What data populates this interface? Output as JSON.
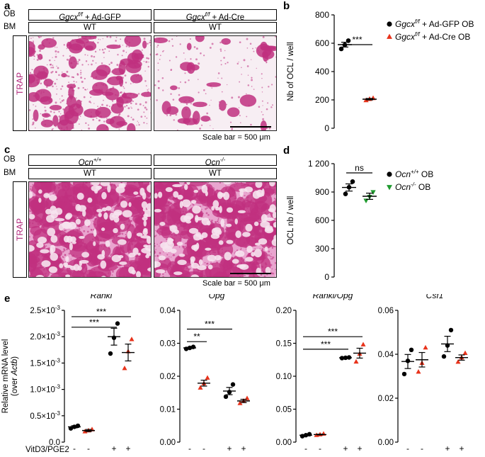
{
  "panels": {
    "a": {
      "label": "a",
      "row_labels": [
        "OB",
        "BM"
      ],
      "ob_left": {
        "gene": "Ggcx",
        "sup": "f/f",
        "rest": " + Ad-GFP"
      },
      "ob_right": {
        "gene": "Ggcx",
        "sup": "f/f",
        "rest": " + Ad-Cre"
      },
      "bm_left": "WT",
      "bm_right": "WT",
      "side_label": "TRAP",
      "scale_text": "Scale bar = 500 μm"
    },
    "c": {
      "label": "c",
      "row_labels": [
        "OB",
        "BM"
      ],
      "ob_left": {
        "gene": "Ocn",
        "sup": "+/+"
      },
      "ob_right": {
        "gene": "Ocn",
        "sup": "-/-"
      },
      "bm_left": "WT",
      "bm_right": "WT",
      "side_label": "TRAP",
      "scale_text": "Scale bar = 500 μm"
    },
    "b": {
      "label": "b"
    },
    "d": {
      "label": "d"
    },
    "e": {
      "label": "e"
    }
  },
  "colors": {
    "trap_stain": "#c0307f",
    "trap_bg_light": "#f7eef3",
    "trap_bg_dense": "#e9a5cf",
    "control_marker": "#000000",
    "cre_marker": "#e8331b",
    "ko_marker": "#1f9a2e"
  },
  "chart_data": [
    {
      "id": "b",
      "type": "scatter",
      "ylabel": "Nb of OCL / well",
      "ylim": [
        0,
        800
      ],
      "yticks": [
        0,
        200,
        400,
        600,
        800
      ],
      "groups": [
        {
          "name": "Ggcx f/f + Ad-GFP OB",
          "marker": "circle",
          "color": "#000000",
          "points": [
            560,
            588,
            618
          ],
          "mean": 590,
          "sem": 17
        },
        {
          "name": "Ggcx f/f + Ad-Cre OB",
          "marker": "triangle-up",
          "color": "#e8331b",
          "points": [
            197,
            206,
            212
          ],
          "mean": 205,
          "sem": 5
        }
      ],
      "significance": [
        {
          "between": [
            0,
            1
          ],
          "text": "***"
        }
      ],
      "legend": [
        {
          "marker": "circle",
          "color": "#000000",
          "gene": "Ggcx",
          "sup": "f/f",
          "rest": " + Ad-GFP OB"
        },
        {
          "marker": "triangle-up",
          "color": "#e8331b",
          "gene": "Ggcx",
          "sup": "f/f",
          "rest": " + Ad-Cre OB"
        }
      ]
    },
    {
      "id": "d",
      "type": "scatter",
      "ylabel": "OCL nb / well",
      "ylim": [
        0,
        1200
      ],
      "ytick_labels": [
        "0",
        "300",
        "600",
        "900",
        "1 200"
      ],
      "yticks": [
        0,
        300,
        600,
        900,
        1200
      ],
      "groups": [
        {
          "name": "Ocn+/+ OB",
          "marker": "circle",
          "color": "#000000",
          "points": [
            880,
            950,
            1010
          ],
          "mean": 948,
          "sem": 38
        },
        {
          "name": "Ocn-/- OB",
          "marker": "triangle-down",
          "color": "#1f9a2e",
          "points": [
            810,
            850,
            900
          ],
          "mean": 855,
          "sem": 33
        }
      ],
      "significance": [
        {
          "between": [
            0,
            1
          ],
          "text": "ns"
        }
      ],
      "legend": [
        {
          "marker": "circle",
          "color": "#000000",
          "gene": "Ocn",
          "sup": "+/+",
          "rest": " OB"
        },
        {
          "marker": "triangle-down",
          "color": "#1f9a2e",
          "gene": "Ocn",
          "sup": "-/-",
          "rest": " OB"
        }
      ]
    },
    {
      "id": "e",
      "type": "scatter",
      "ylabel_line1": "Relative mRNA level",
      "ylabel_line2_pre": "(over ",
      "ylabel_line2_italic": "Actb",
      "ylabel_line2_post": ")",
      "xlabel_row": "VitD3/PGE2",
      "treatments": [
        "-",
        "-",
        "+",
        "+"
      ],
      "subplots": [
        {
          "title": "Rankl",
          "italic": true,
          "title_suffix": "",
          "ylim": [
            0,
            0.0025
          ],
          "ytick_labels": [
            {
              "base": "0.0",
              "exp": ""
            },
            {
              "base": "0.5×10",
              "exp": "-3"
            },
            {
              "base": "1.0×10",
              "exp": "-3"
            },
            {
              "base": "1.5×10",
              "exp": "-3"
            },
            {
              "base": "2.0×10",
              "exp": "-3"
            },
            {
              "base": "2.5×10",
              "exp": "-3"
            }
          ],
          "yticks": [
            0,
            0.0005,
            0.001,
            0.0015,
            0.002,
            0.0025
          ],
          "groups": [
            {
              "marker": "circle",
              "color": "#000000",
              "points": [
                0.00026,
                0.00029,
                0.00031
              ],
              "mean": 0.00029,
              "sem": 2e-05
            },
            {
              "marker": "triangle-up",
              "color": "#e8331b",
              "points": [
                0.0002,
                0.00022,
                0.00024
              ],
              "mean": 0.00022,
              "sem": 2e-05
            },
            {
              "marker": "circle",
              "color": "#000000",
              "points": [
                0.00168,
                0.00198,
                0.00225
              ],
              "mean": 0.002,
              "sem": 0.00016
            },
            {
              "marker": "triangle-up",
              "color": "#e8331b",
              "points": [
                0.0014,
                0.00172,
                0.00195
              ],
              "mean": 0.0017,
              "sem": 0.00016
            }
          ],
          "significance": [
            {
              "between": [
                0,
                2
              ],
              "text": "***",
              "level": 0.00218
            },
            {
              "between": [
                0,
                3
              ],
              "text": "***",
              "level": 0.00238
            }
          ]
        },
        {
          "title": "Opg",
          "italic": true,
          "title_suffix": "",
          "ylim": [
            0,
            0.04
          ],
          "ytick_labels": [
            {
              "base": "0.00",
              "exp": ""
            },
            {
              "base": "0.01",
              "exp": ""
            },
            {
              "base": "0.02",
              "exp": ""
            },
            {
              "base": "0.03",
              "exp": ""
            },
            {
              "base": "0.04",
              "exp": ""
            }
          ],
          "yticks": [
            0,
            0.01,
            0.02,
            0.03,
            0.04
          ],
          "groups": [
            {
              "marker": "circle",
              "color": "#000000",
              "points": [
                0.0283,
                0.0286,
                0.0289
              ],
              "mean": 0.0286,
              "sem": 0.0002
            },
            {
              "marker": "triangle-up",
              "color": "#e8331b",
              "points": [
                0.0165,
                0.0178,
                0.0195
              ],
              "mean": 0.0179,
              "sem": 0.0009
            },
            {
              "marker": "circle",
              "color": "#000000",
              "points": [
                0.0138,
                0.0152,
                0.0175
              ],
              "mean": 0.0155,
              "sem": 0.0011
            },
            {
              "marker": "triangle-up",
              "color": "#e8331b",
              "points": [
                0.0118,
                0.0125,
                0.0133
              ],
              "mean": 0.0125,
              "sem": 0.0005
            }
          ],
          "significance": [
            {
              "between": [
                0,
                1
              ],
              "text": "**",
              "level": 0.0305
            },
            {
              "between": [
                0,
                2
              ],
              "text": "***",
              "level": 0.0343
            }
          ]
        },
        {
          "title": "Rankl/Opg",
          "italic": true,
          "title_suffix": "",
          "ylim": [
            0,
            0.2
          ],
          "ytick_labels": [
            {
              "base": "0.00",
              "exp": ""
            },
            {
              "base": "0.05",
              "exp": ""
            },
            {
              "base": "0.10",
              "exp": ""
            },
            {
              "base": "0.15",
              "exp": ""
            },
            {
              "base": "0.20",
              "exp": ""
            }
          ],
          "yticks": [
            0,
            0.05,
            0.1,
            0.15,
            0.2
          ],
          "groups": [
            {
              "marker": "circle",
              "color": "#000000",
              "points": [
                0.009,
                0.0105,
                0.012
              ],
              "mean": 0.0105,
              "sem": 0.0009
            },
            {
              "marker": "triangle-up",
              "color": "#e8331b",
              "points": [
                0.0105,
                0.0115,
                0.0125
              ],
              "mean": 0.0115,
              "sem": 0.0006
            },
            {
              "marker": "circle",
              "color": "#000000",
              "points": [
                0.1275,
                0.128,
                0.1285
              ],
              "mean": 0.128,
              "sem": 0.0003
            },
            {
              "marker": "triangle-up",
              "color": "#e8331b",
              "points": [
                0.122,
                0.134,
                0.148
              ],
              "mean": 0.135,
              "sem": 0.0075
            }
          ],
          "significance": [
            {
              "between": [
                0,
                2
              ],
              "text": "***",
              "level": 0.141
            },
            {
              "between": [
                0,
                3
              ],
              "text": "***",
              "level": 0.16
            }
          ]
        },
        {
          "title": "Csf1",
          "italic": true,
          "title_suffix": "",
          "ylim": [
            0,
            0.06
          ],
          "ytick_labels": [
            {
              "base": "0.00",
              "exp": ""
            },
            {
              "base": "0.02",
              "exp": ""
            },
            {
              "base": "0.04",
              "exp": ""
            },
            {
              "base": "0.06",
              "exp": ""
            }
          ],
          "yticks": [
            0,
            0.02,
            0.04,
            0.06
          ],
          "groups": [
            {
              "marker": "circle",
              "color": "#000000",
              "points": [
                0.031,
                0.037,
                0.042
              ],
              "mean": 0.0367,
              "sem": 0.0032
            },
            {
              "marker": "triangle-up",
              "color": "#e8331b",
              "points": [
                0.032,
                0.036,
                0.043
              ],
              "mean": 0.0375,
              "sem": 0.0033
            },
            {
              "marker": "circle",
              "color": "#000000",
              "points": [
                0.039,
                0.044,
                0.051
              ],
              "mean": 0.0447,
              "sem": 0.0035
            },
            {
              "marker": "triangle-up",
              "color": "#e8331b",
              "points": [
                0.0365,
                0.0385,
                0.0405
              ],
              "mean": 0.0385,
              "sem": 0.0012
            }
          ],
          "significance": []
        }
      ]
    }
  ]
}
